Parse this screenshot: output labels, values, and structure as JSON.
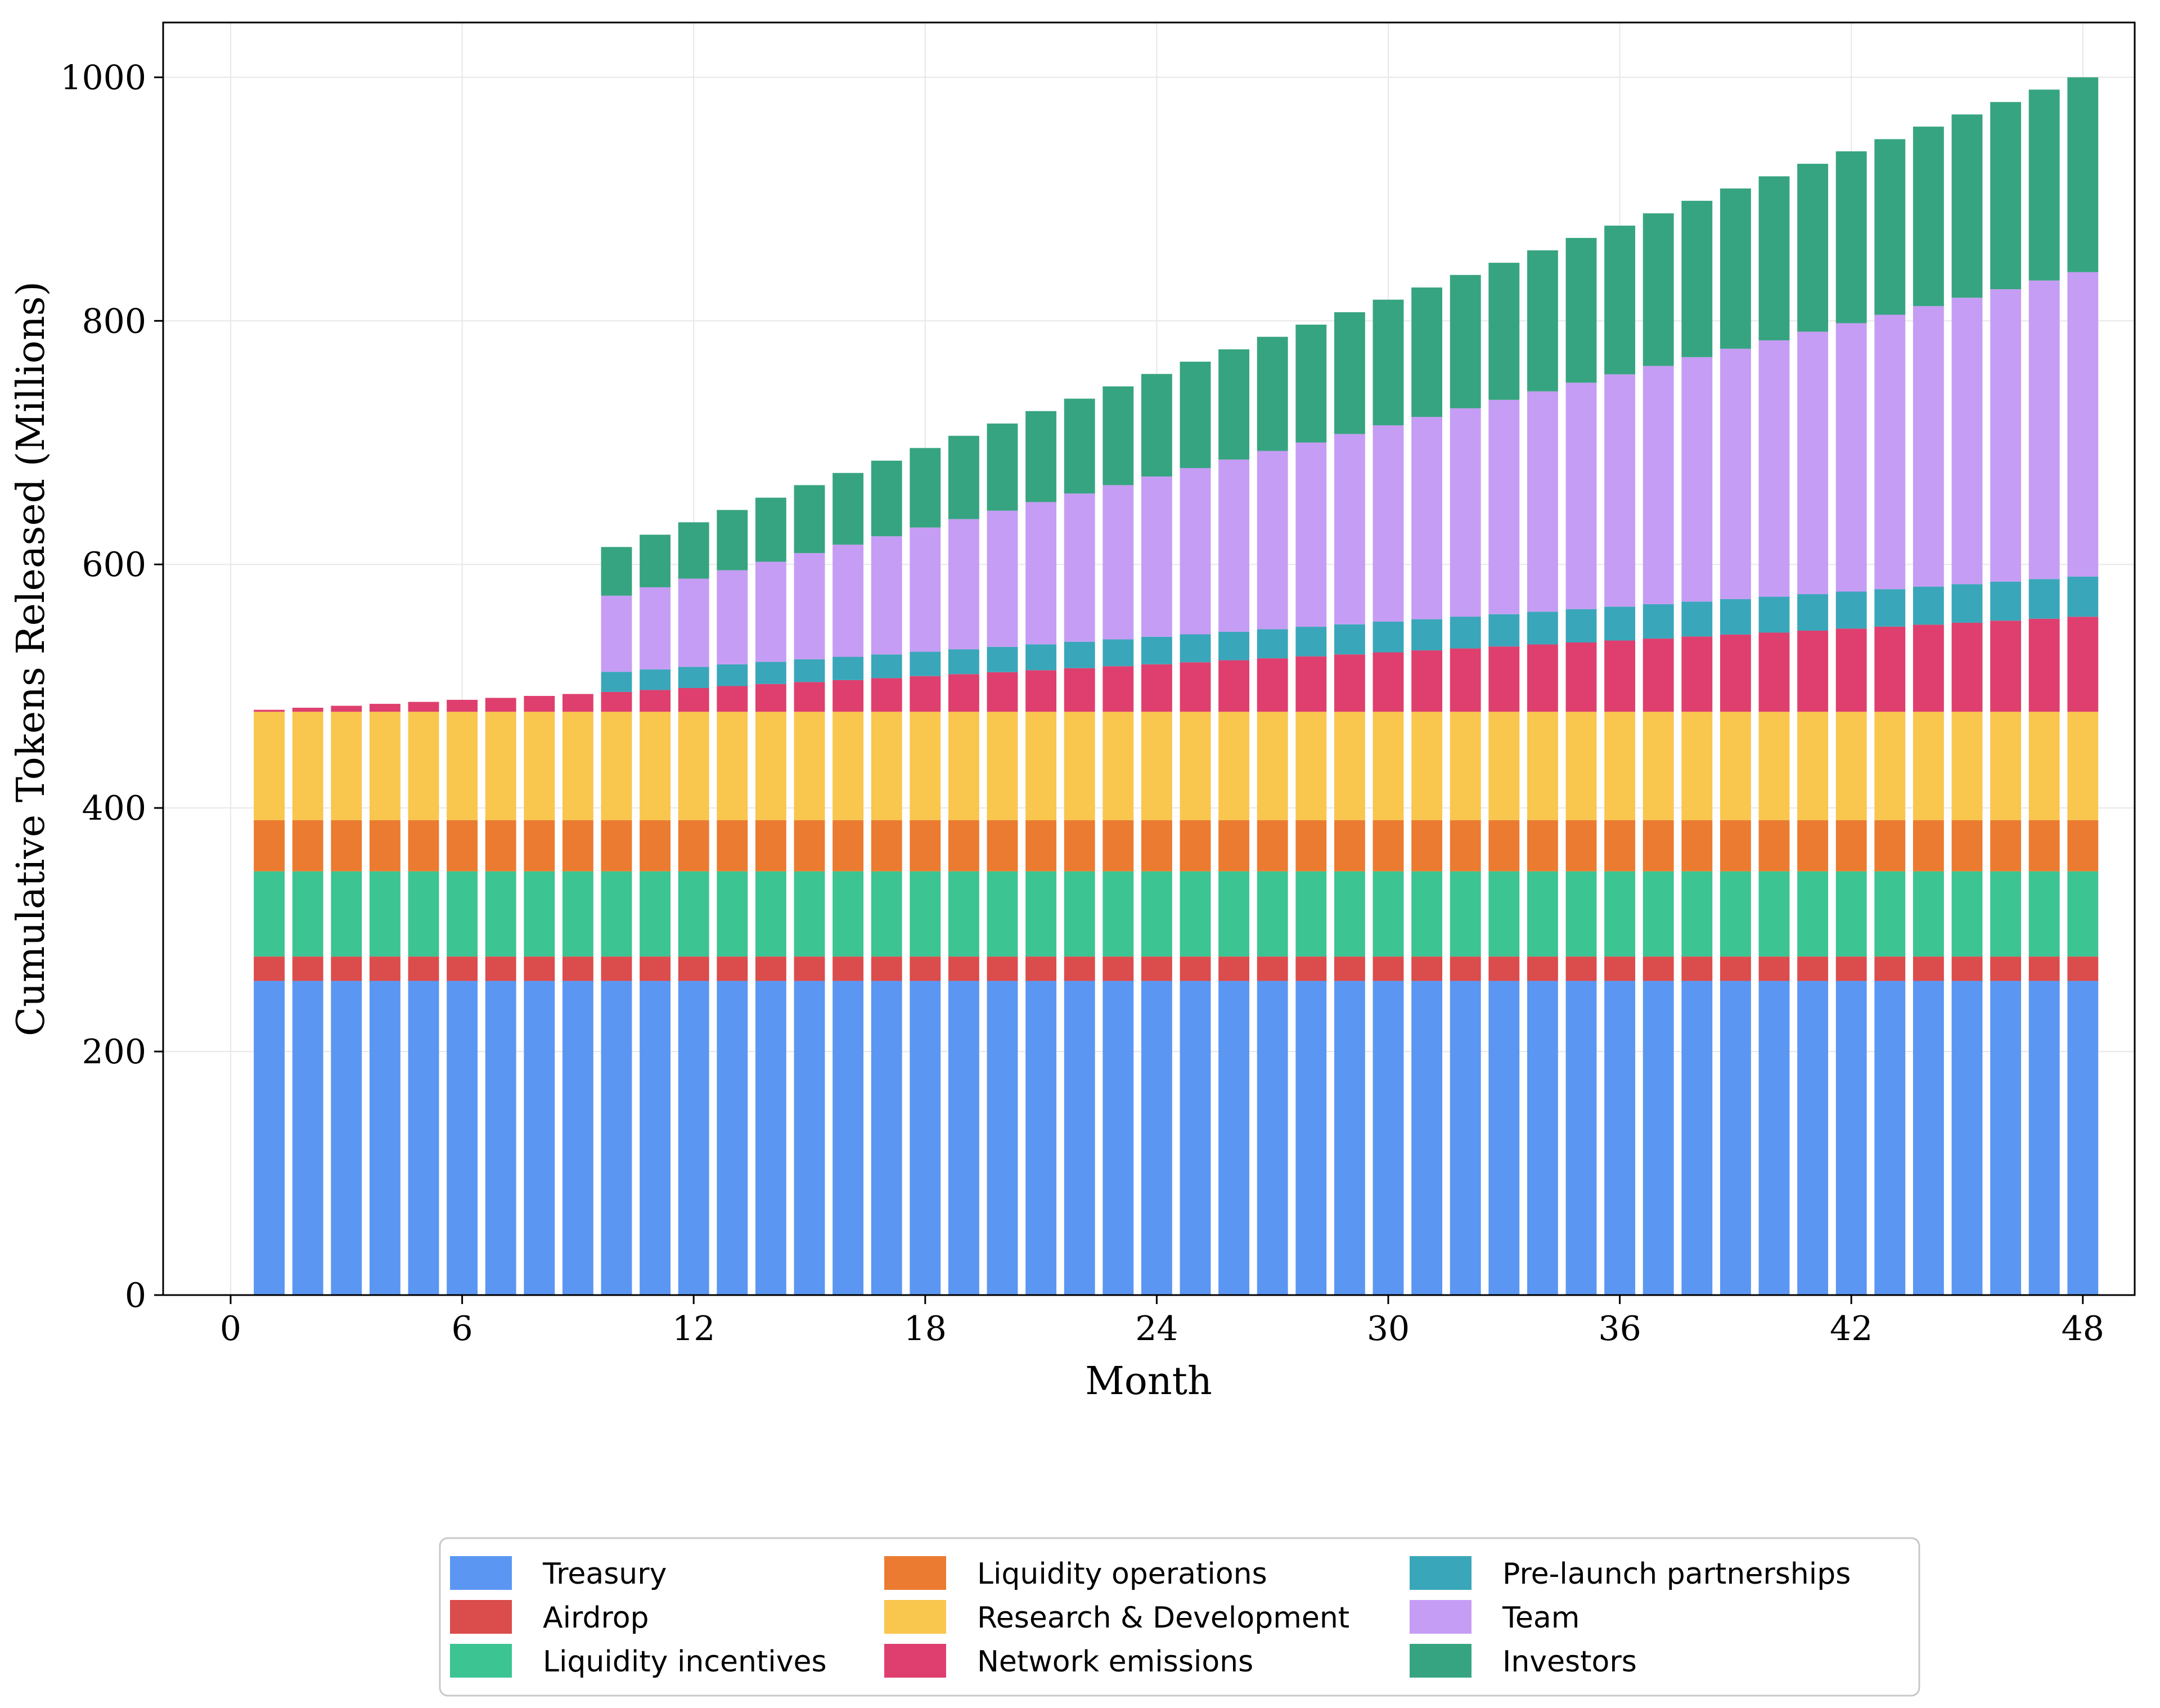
{
  "figure": {
    "background": "#ffffff",
    "frame_color": "#000000",
    "grid_color": "#e7e7e7"
  },
  "chart_data": {
    "type": "bar",
    "stacked": true,
    "title": "",
    "xlabel": "Month",
    "ylabel": "Cumulative Tokens Released (Millions)",
    "grid": true,
    "legend_position": "bottom",
    "legend_columns": 3,
    "bar_width": 0.8,
    "xlim": [
      -1.75,
      49.35
    ],
    "ylim": [
      0,
      1045
    ],
    "xticks": [
      0,
      6,
      12,
      18,
      24,
      30,
      36,
      42,
      48
    ],
    "yticks": [
      0,
      200,
      400,
      600,
      800,
      1000
    ],
    "x": [
      1,
      2,
      3,
      4,
      5,
      6,
      7,
      8,
      9,
      10,
      11,
      12,
      13,
      14,
      15,
      16,
      17,
      18,
      19,
      20,
      21,
      22,
      23,
      24,
      25,
      26,
      27,
      28,
      29,
      30,
      31,
      32,
      33,
      34,
      35,
      36,
      37,
      38,
      39,
      40,
      41,
      42,
      43,
      44,
      45,
      46,
      47,
      48
    ],
    "series": [
      {
        "name": "Treasury",
        "color": "#5b97f2",
        "values": [
          258,
          258,
          258,
          258,
          258,
          258,
          258,
          258,
          258,
          258,
          258,
          258,
          258,
          258,
          258,
          258,
          258,
          258,
          258,
          258,
          258,
          258,
          258,
          258,
          258,
          258,
          258,
          258,
          258,
          258,
          258,
          258,
          258,
          258,
          258,
          258,
          258,
          258,
          258,
          258,
          258,
          258,
          258,
          258,
          258,
          258,
          258,
          258
        ]
      },
      {
        "name": "Airdrop",
        "color": "#db4c4c",
        "values": [
          20,
          20,
          20,
          20,
          20,
          20,
          20,
          20,
          20,
          20,
          20,
          20,
          20,
          20,
          20,
          20,
          20,
          20,
          20,
          20,
          20,
          20,
          20,
          20,
          20,
          20,
          20,
          20,
          20,
          20,
          20,
          20,
          20,
          20,
          20,
          20,
          20,
          20,
          20,
          20,
          20,
          20,
          20,
          20,
          20,
          20,
          20,
          20
        ]
      },
      {
        "name": "Liquidity incentives",
        "color": "#3cc492",
        "values": [
          70,
          70,
          70,
          70,
          70,
          70,
          70,
          70,
          70,
          70,
          70,
          70,
          70,
          70,
          70,
          70,
          70,
          70,
          70,
          70,
          70,
          70,
          70,
          70,
          70,
          70,
          70,
          70,
          70,
          70,
          70,
          70,
          70,
          70,
          70,
          70,
          70,
          70,
          70,
          70,
          70,
          70,
          70,
          70,
          70,
          70,
          70,
          70
        ]
      },
      {
        "name": "Liquidity operations",
        "color": "#eb7b30",
        "values": [
          42,
          42,
          42,
          42,
          42,
          42,
          42,
          42,
          42,
          42,
          42,
          42,
          42,
          42,
          42,
          42,
          42,
          42,
          42,
          42,
          42,
          42,
          42,
          42,
          42,
          42,
          42,
          42,
          42,
          42,
          42,
          42,
          42,
          42,
          42,
          42,
          42,
          42,
          42,
          42,
          42,
          42,
          42,
          42,
          42,
          42,
          42,
          42
        ]
      },
      {
        "name": "Research & Development",
        "color": "#f9c64e",
        "values": [
          89,
          89,
          89,
          89,
          89,
          89,
          89,
          89,
          89,
          89,
          89,
          89,
          89,
          89,
          89,
          89,
          89,
          89,
          89,
          89,
          89,
          89,
          89,
          89,
          89,
          89,
          89,
          89,
          89,
          89,
          89,
          89,
          89,
          89,
          89,
          89,
          89,
          89,
          89,
          89,
          89,
          89,
          89,
          89,
          89,
          89,
          89,
          89
        ]
      },
      {
        "name": "Network emissions",
        "color": "#de3f6e",
        "values": [
          1.6,
          3.3,
          4.9,
          6.5,
          8.1,
          9.8,
          11.4,
          13,
          14.6,
          16.3,
          17.9,
          19.5,
          21.1,
          22.8,
          24.4,
          26,
          27.6,
          29.3,
          30.9,
          32.5,
          34.1,
          35.8,
          37.4,
          39,
          40.6,
          42.3,
          43.9,
          45.5,
          47.1,
          48.8,
          50.4,
          52,
          53.6,
          55.3,
          56.9,
          58.5,
          60.1,
          61.8,
          63.4,
          65,
          66.6,
          68.3,
          69.9,
          71.5,
          73.1,
          74.8,
          76.4,
          78
        ]
      },
      {
        "name": "Pre-launch partnerships",
        "color": "#3aa6ba",
        "values": [
          0,
          0,
          0,
          0,
          0,
          0,
          0,
          0,
          0,
          16.5,
          16.9,
          17.4,
          17.8,
          18.2,
          18.7,
          19.1,
          19.5,
          20,
          20.4,
          20.8,
          21.3,
          21.7,
          22.1,
          22.6,
          23,
          23.4,
          23.9,
          24.3,
          24.7,
          25.2,
          25.6,
          26.1,
          26.5,
          26.9,
          27.4,
          27.8,
          28.2,
          28.7,
          29.1,
          29.5,
          30,
          30.4,
          30.8,
          31.3,
          31.7,
          32.1,
          32.6,
          33
        ]
      },
      {
        "name": "Team",
        "color": "#c69df4",
        "values": [
          0,
          0,
          0,
          0,
          0,
          0,
          0,
          0,
          0,
          62.5,
          67.4,
          72.4,
          77.3,
          82.2,
          87.2,
          92.1,
          97,
          102,
          106.9,
          111.8,
          116.8,
          121.7,
          126.6,
          131.6,
          136.5,
          141.4,
          146.4,
          151.3,
          156.3,
          161.2,
          166.1,
          171.1,
          176,
          180.9,
          185.9,
          190.8,
          195.7,
          200.7,
          205.6,
          210.5,
          215.5,
          220.4,
          225.3,
          230.3,
          235.2,
          240.1,
          245.1,
          250
        ]
      },
      {
        "name": "Investors",
        "color": "#37a481",
        "values": [
          0,
          0,
          0,
          0,
          0,
          0,
          0,
          0,
          0,
          40,
          43.2,
          46.3,
          49.5,
          52.6,
          55.8,
          58.9,
          62.1,
          65.3,
          68.4,
          71.6,
          74.7,
          77.9,
          81.1,
          84.2,
          87.4,
          90.5,
          93.7,
          96.8,
          100,
          103.2,
          106.3,
          109.5,
          112.6,
          115.8,
          118.9,
          122.1,
          125.3,
          128.4,
          131.6,
          134.7,
          137.9,
          141.1,
          144.2,
          147.4,
          150.5,
          153.7,
          156.8,
          160
        ]
      }
    ]
  }
}
